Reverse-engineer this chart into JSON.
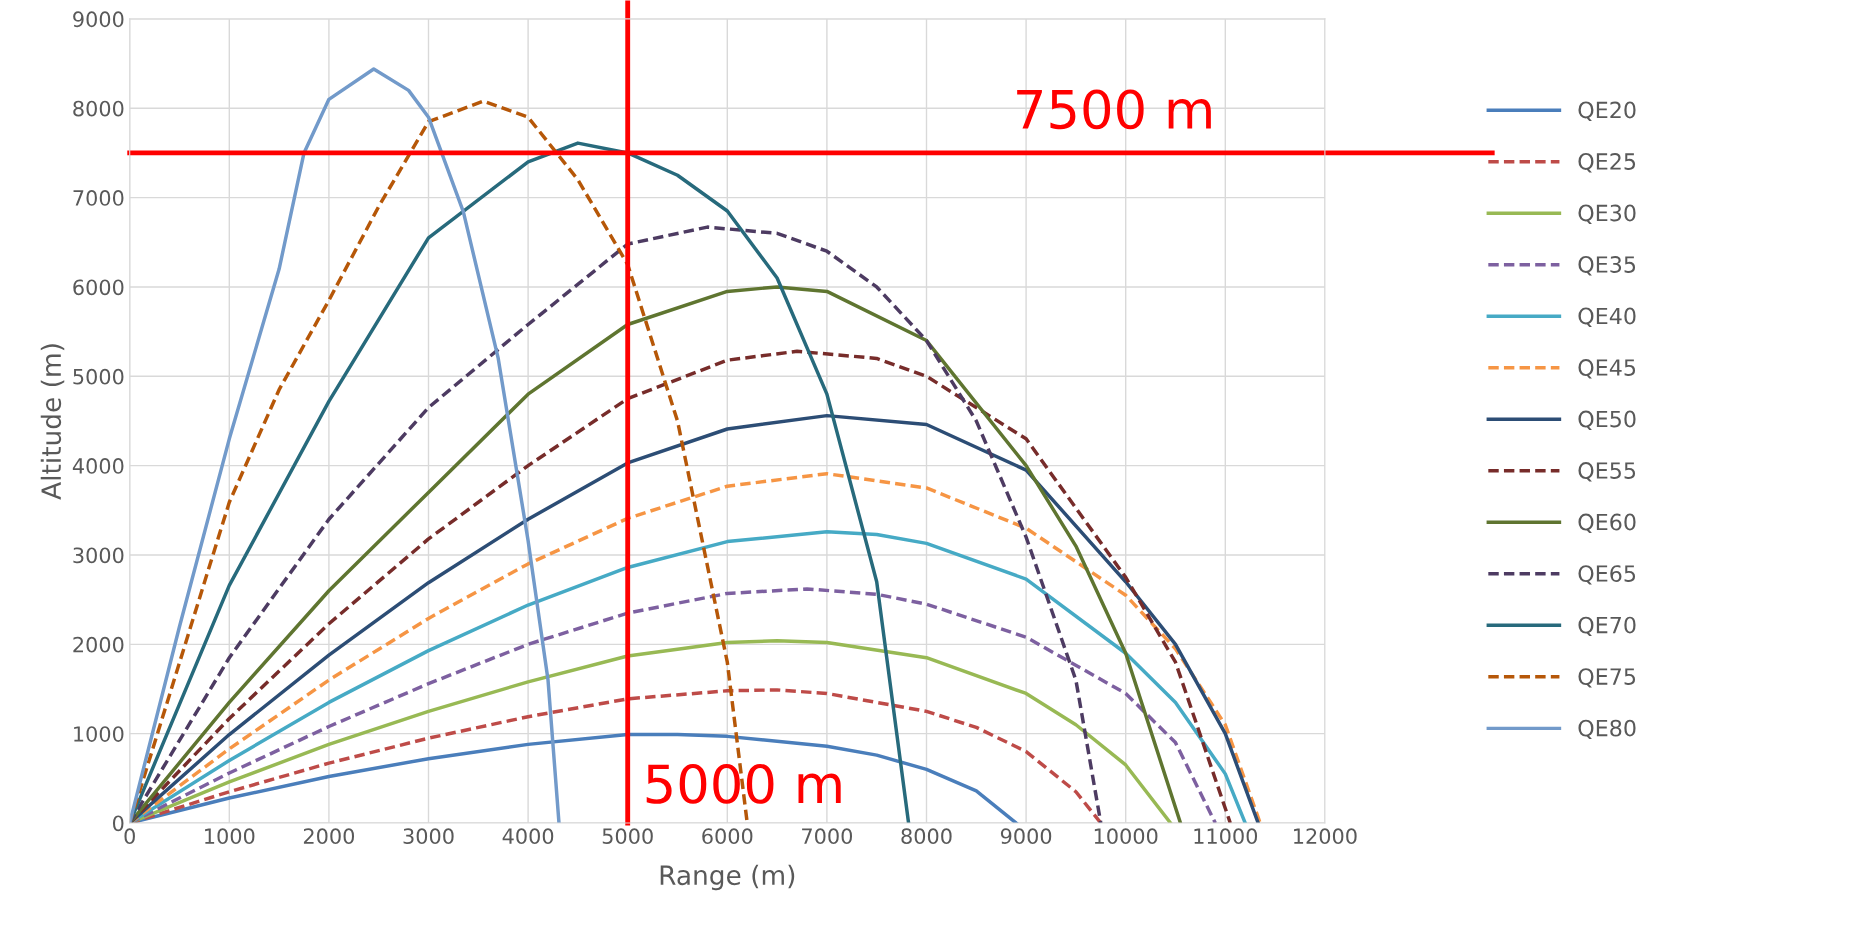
{
  "chart_data": {
    "type": "line",
    "xlabel": "Range (m)",
    "ylabel": "Altitude (m)",
    "xlim": [
      0,
      12000
    ],
    "xticks": [
      0,
      1000,
      2000,
      3000,
      4000,
      5000,
      6000,
      7000,
      8000,
      9000,
      10000,
      11000,
      12000
    ],
    "ylim": [
      0,
      9000
    ],
    "yticks": [
      0,
      1000,
      2000,
      3000,
      4000,
      5000,
      6000,
      7000,
      8000,
      9000
    ],
    "grid": true,
    "legend": "right",
    "marker": "none",
    "ref_lines": [
      {
        "axis": "y",
        "value": 7500,
        "label": "7500 m",
        "color": "#ff0000"
      },
      {
        "axis": "x",
        "value": 5000,
        "label": "5000 m",
        "color": "#ff0000"
      }
    ],
    "series": [
      {
        "name": "QE20",
        "color": "#4a7ebb",
        "line_style": "solid",
        "x": [
          0,
          1000,
          2000,
          3000,
          4000,
          5000,
          5500,
          6000,
          7000,
          7500,
          8000,
          8500,
          8900
        ],
        "values": [
          0,
          280,
          520,
          720,
          880,
          990,
          990,
          970,
          860,
          760,
          600,
          360,
          0
        ]
      },
      {
        "name": "QE25",
        "color": "#be4b48",
        "line_style": "dashed",
        "x": [
          0,
          1000,
          2000,
          3000,
          4000,
          5000,
          6000,
          6500,
          7000,
          8000,
          8500,
          9000,
          9500,
          9750
        ],
        "values": [
          0,
          350,
          670,
          950,
          1190,
          1390,
          1480,
          1490,
          1450,
          1250,
          1070,
          800,
          350,
          0
        ]
      },
      {
        "name": "QE30",
        "color": "#98b954",
        "line_style": "solid",
        "x": [
          0,
          1000,
          2000,
          3000,
          4000,
          5000,
          6000,
          6500,
          7000,
          8000,
          9000,
          9500,
          10000,
          10450
        ],
        "values": [
          0,
          460,
          880,
          1250,
          1580,
          1870,
          2020,
          2040,
          2020,
          1850,
          1450,
          1100,
          650,
          0
        ]
      },
      {
        "name": "QE35",
        "color": "#7d60a0",
        "line_style": "dashed",
        "x": [
          0,
          1000,
          2000,
          3000,
          4000,
          5000,
          6000,
          6800,
          7500,
          8000,
          9000,
          10000,
          10500,
          10900
        ],
        "values": [
          0,
          560,
          1080,
          1560,
          2000,
          2350,
          2570,
          2620,
          2560,
          2450,
          2080,
          1450,
          900,
          0
        ]
      },
      {
        "name": "QE40",
        "color": "#46aac5",
        "line_style": "solid",
        "x": [
          0,
          1000,
          2000,
          3000,
          4000,
          5000,
          6000,
          7000,
          7500,
          8000,
          9000,
          10000,
          10500,
          11000,
          11200
        ],
        "values": [
          0,
          700,
          1350,
          1930,
          2440,
          2860,
          3150,
          3260,
          3230,
          3130,
          2730,
          1900,
          1350,
          550,
          0
        ]
      },
      {
        "name": "QE45",
        "color": "#f69544",
        "line_style": "dashed",
        "x": [
          0,
          1000,
          2000,
          3000,
          4000,
          5000,
          6000,
          7000,
          8000,
          9000,
          10000,
          10500,
          11000,
          11350
        ],
        "values": [
          0,
          830,
          1600,
          2290,
          2900,
          3410,
          3770,
          3910,
          3750,
          3300,
          2550,
          1950,
          1100,
          0
        ]
      },
      {
        "name": "QE50",
        "color": "#2c4d75",
        "line_style": "solid",
        "x": [
          0,
          1000,
          2000,
          3000,
          4000,
          5000,
          6000,
          7000,
          8000,
          9000,
          10000,
          10500,
          11000,
          11330
        ],
        "values": [
          0,
          990,
          1880,
          2690,
          3400,
          4030,
          4410,
          4560,
          4460,
          3950,
          2700,
          2000,
          1000,
          0
        ]
      },
      {
        "name": "QE55",
        "color": "#772c2a",
        "line_style": "dashed",
        "x": [
          0,
          1000,
          2000,
          3000,
          4000,
          5000,
          6000,
          6700,
          7500,
          8000,
          9000,
          10000,
          10500,
          11050
        ],
        "values": [
          0,
          1170,
          2230,
          3180,
          4000,
          4750,
          5180,
          5280,
          5200,
          5000,
          4300,
          2750,
          1800,
          0
        ]
      },
      {
        "name": "QE60",
        "color": "#5f7530",
        "line_style": "solid",
        "x": [
          0,
          1000,
          2000,
          3000,
          4000,
          5000,
          6000,
          6500,
          7000,
          8000,
          9000,
          9500,
          10000,
          10550
        ],
        "values": [
          0,
          1350,
          2600,
          3700,
          4800,
          5580,
          5950,
          6000,
          5950,
          5400,
          4000,
          3100,
          1900,
          0
        ]
      },
      {
        "name": "QE65",
        "color": "#4d3b62",
        "line_style": "dashed",
        "x": [
          0,
          1000,
          2000,
          3000,
          4000,
          5000,
          5800,
          6500,
          7000,
          7500,
          8000,
          8500,
          9000,
          9500,
          9750
        ],
        "values": [
          0,
          1850,
          3400,
          4650,
          5580,
          6480,
          6670,
          6600,
          6400,
          6000,
          5400,
          4500,
          3200,
          1600,
          0
        ]
      },
      {
        "name": "QE70",
        "color": "#276a7c",
        "line_style": "solid",
        "x": [
          0,
          1000,
          2000,
          3000,
          4000,
          4500,
          5000,
          5500,
          6000,
          6500,
          7000,
          7500,
          7820
        ],
        "values": [
          0,
          2660,
          4720,
          6550,
          7400,
          7610,
          7500,
          7250,
          6850,
          6100,
          4800,
          2700,
          0
        ]
      },
      {
        "name": "QE75",
        "color": "#b65708",
        "line_style": "dashed",
        "x": [
          0,
          1000,
          1500,
          2000,
          2500,
          3000,
          3550,
          4000,
          4500,
          5000,
          5500,
          6000,
          6200
        ],
        "values": [
          0,
          3590,
          4850,
          5850,
          6900,
          7850,
          8080,
          7900,
          7200,
          6250,
          4500,
          1800,
          0
        ]
      },
      {
        "name": "QE80",
        "color": "#729aca",
        "line_style": "solid",
        "x": [
          0,
          500,
          1000,
          1500,
          1750,
          2000,
          2450,
          2800,
          3000,
          3350,
          3700,
          4000,
          4200,
          4310
        ],
        "values": [
          0,
          2200,
          4300,
          6200,
          7500,
          8100,
          8440,
          8200,
          7900,
          6840,
          5200,
          3160,
          1600,
          0
        ]
      }
    ]
  }
}
